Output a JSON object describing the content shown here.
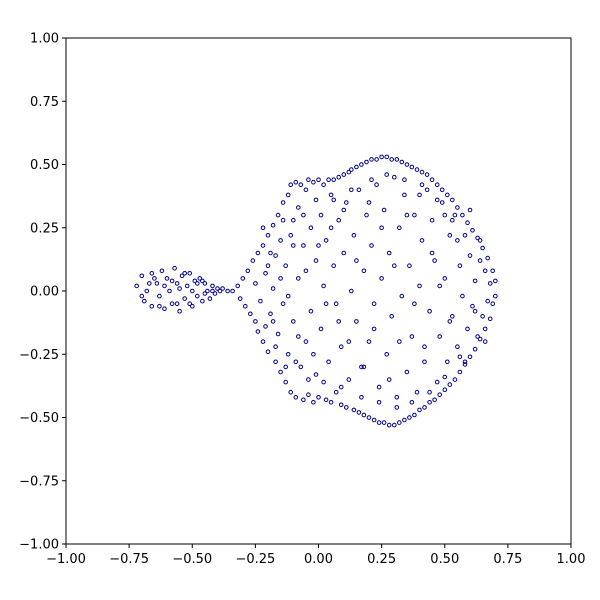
{
  "chart_data": {
    "type": "scatter",
    "title": "",
    "xlabel": "",
    "ylabel": "",
    "xlim": [
      -1.0,
      1.0
    ],
    "ylim": [
      -1.0,
      1.0
    ],
    "grid": false,
    "legend": "none",
    "marker": "open-circle",
    "marker_color": "#00008b",
    "x_ticks": [
      "−1.00",
      "−0.75",
      "−0.50",
      "−0.25",
      "0.00",
      "0.25",
      "0.50",
      "0.75",
      "1.00"
    ],
    "y_ticks": [
      "−1.00",
      "−0.75",
      "−0.50",
      "−0.25",
      "0.00",
      "0.25",
      "0.50",
      "0.75",
      "1.00"
    ],
    "series": [
      {
        "values_desc": "dense cloud of points",
        "points": [
          [
            -0.72,
            0.02
          ],
          [
            -0.7,
            0.06
          ],
          [
            -0.69,
            -0.04
          ],
          [
            -0.68,
            0.0
          ],
          [
            -0.66,
            0.07
          ],
          [
            -0.66,
            -0.06
          ],
          [
            -0.64,
            0.03
          ],
          [
            -0.63,
            -0.02
          ],
          [
            -0.62,
            0.08
          ],
          [
            -0.61,
            -0.07
          ],
          [
            -0.6,
            0.05
          ],
          [
            -0.59,
            0.0
          ],
          [
            -0.58,
            -0.05
          ],
          [
            -0.57,
            0.09
          ],
          [
            -0.56,
            0.03
          ],
          [
            -0.55,
            -0.08
          ],
          [
            -0.54,
            0.06
          ],
          [
            -0.53,
            -0.03
          ],
          [
            -0.52,
            0.02
          ],
          [
            -0.51,
            0.07
          ],
          [
            -0.5,
            -0.06
          ],
          [
            -0.49,
            0.04
          ],
          [
            -0.48,
            -0.02
          ],
          [
            -0.47,
            0.05
          ],
          [
            -0.46,
            -0.04
          ],
          [
            -0.45,
            0.03
          ],
          [
            -0.44,
            0.0
          ],
          [
            -0.43,
            -0.03
          ],
          [
            -0.42,
            0.02
          ],
          [
            -0.41,
            -0.01
          ],
          [
            -0.4,
            0.01
          ],
          [
            -0.38,
            0.01
          ],
          [
            -0.36,
            0.0
          ],
          [
            -0.34,
            0.0
          ],
          [
            -0.32,
            0.02
          ],
          [
            -0.31,
            -0.03
          ],
          [
            -0.3,
            0.05
          ],
          [
            -0.29,
            -0.06
          ],
          [
            -0.28,
            0.08
          ],
          [
            -0.27,
            -0.09
          ],
          [
            -0.26,
            0.12
          ],
          [
            -0.25,
            -0.12
          ],
          [
            -0.25,
            0.03
          ],
          [
            -0.24,
            0.15
          ],
          [
            -0.24,
            -0.16
          ],
          [
            -0.23,
            -0.04
          ],
          [
            -0.22,
            0.18
          ],
          [
            -0.22,
            -0.2
          ],
          [
            -0.21,
            0.07
          ],
          [
            -0.2,
            0.22
          ],
          [
            -0.2,
            -0.24
          ],
          [
            -0.19,
            -0.09
          ],
          [
            -0.18,
            0.26
          ],
          [
            -0.18,
            0.01
          ],
          [
            -0.17,
            -0.28
          ],
          [
            -0.17,
            0.14
          ],
          [
            -0.16,
            0.3
          ],
          [
            -0.16,
            -0.17
          ],
          [
            -0.15,
            -0.32
          ],
          [
            -0.15,
            0.2
          ],
          [
            -0.14,
            0.35
          ],
          [
            -0.14,
            -0.05
          ],
          [
            -0.13,
            -0.36
          ],
          [
            -0.13,
            0.1
          ],
          [
            -0.12,
            0.38
          ],
          [
            -0.12,
            -0.25
          ],
          [
            -0.11,
            0.42
          ],
          [
            -0.11,
            -0.4
          ],
          [
            -0.1,
            0.28
          ],
          [
            -0.1,
            -0.12
          ],
          [
            -0.09,
            0.43
          ],
          [
            -0.09,
            -0.42
          ],
          [
            -0.08,
            0.05
          ],
          [
            -0.08,
            0.33
          ],
          [
            -0.07,
            -0.3
          ],
          [
            -0.07,
            0.42
          ],
          [
            -0.06,
            -0.43
          ],
          [
            -0.06,
            0.18
          ],
          [
            -0.05,
            0.4
          ],
          [
            -0.05,
            -0.2
          ],
          [
            -0.04,
            0.44
          ],
          [
            -0.04,
            -0.41
          ],
          [
            -0.03,
            0.25
          ],
          [
            -0.03,
            -0.08
          ],
          [
            -0.02,
            0.43
          ],
          [
            -0.02,
            -0.44
          ],
          [
            -0.01,
            0.12
          ],
          [
            -0.01,
            -0.33
          ],
          [
            0.0,
            0.44
          ],
          [
            0.0,
            -0.42
          ],
          [
            0.01,
            0.3
          ],
          [
            0.01,
            -0.15
          ],
          [
            0.02,
            0.42
          ],
          [
            0.02,
            0.02
          ],
          [
            0.03,
            -0.43
          ],
          [
            0.03,
            0.2
          ],
          [
            0.04,
            0.44
          ],
          [
            0.04,
            -0.28
          ],
          [
            0.05,
            0.38
          ],
          [
            0.05,
            -0.44
          ],
          [
            0.06,
            0.1
          ],
          [
            0.06,
            0.44
          ],
          [
            0.07,
            -0.4
          ],
          [
            0.07,
            -0.05
          ],
          [
            0.08,
            0.45
          ],
          [
            0.08,
            0.28
          ],
          [
            0.09,
            -0.45
          ],
          [
            0.09,
            -0.22
          ],
          [
            0.1,
            0.46
          ],
          [
            0.1,
            0.15
          ],
          [
            0.11,
            -0.46
          ],
          [
            0.11,
            0.35
          ],
          [
            0.12,
            0.47
          ],
          [
            0.12,
            -0.35
          ],
          [
            0.13,
            0.0
          ],
          [
            0.13,
            0.48
          ],
          [
            0.14,
            -0.47
          ],
          [
            0.14,
            0.22
          ],
          [
            0.15,
            0.49
          ],
          [
            0.15,
            -0.12
          ],
          [
            0.16,
            -0.48
          ],
          [
            0.16,
            0.4
          ],
          [
            0.17,
            0.5
          ],
          [
            0.17,
            -0.3
          ],
          [
            0.18,
            0.08
          ],
          [
            0.18,
            -0.49
          ],
          [
            0.19,
            0.51
          ],
          [
            0.19,
            0.3
          ],
          [
            0.2,
            -0.5
          ],
          [
            0.2,
            -0.2
          ],
          [
            0.21,
            0.52
          ],
          [
            0.21,
            0.18
          ],
          [
            0.22,
            -0.51
          ],
          [
            0.22,
            -0.05
          ],
          [
            0.23,
            0.52
          ],
          [
            0.23,
            0.42
          ],
          [
            0.24,
            -0.52
          ],
          [
            0.24,
            -0.38
          ],
          [
            0.25,
            0.53
          ],
          [
            0.25,
            0.05
          ],
          [
            0.26,
            -0.52
          ],
          [
            0.26,
            0.32
          ],
          [
            0.27,
            0.53
          ],
          [
            0.27,
            -0.25
          ],
          [
            0.28,
            -0.53
          ],
          [
            0.28,
            0.15
          ],
          [
            0.29,
            0.52
          ],
          [
            0.29,
            -0.1
          ],
          [
            0.3,
            -0.53
          ],
          [
            0.3,
            0.45
          ],
          [
            0.31,
            0.52
          ],
          [
            0.31,
            -0.42
          ],
          [
            0.32,
            0.25
          ],
          [
            0.32,
            -0.52
          ],
          [
            0.33,
            0.51
          ],
          [
            0.33,
            -0.02
          ],
          [
            0.34,
            -0.51
          ],
          [
            0.34,
            0.38
          ],
          [
            0.35,
            0.5
          ],
          [
            0.35,
            -0.32
          ],
          [
            0.36,
            0.1
          ],
          [
            0.36,
            -0.5
          ],
          [
            0.37,
            0.49
          ],
          [
            0.37,
            -0.18
          ],
          [
            0.38,
            -0.49
          ],
          [
            0.38,
            0.3
          ],
          [
            0.39,
            0.48
          ],
          [
            0.39,
            -0.4
          ],
          [
            0.4,
            0.02
          ],
          [
            0.4,
            -0.47
          ],
          [
            0.41,
            0.47
          ],
          [
            0.41,
            0.2
          ],
          [
            0.42,
            -0.46
          ],
          [
            0.42,
            -0.28
          ],
          [
            0.43,
            0.46
          ],
          [
            0.43,
            0.4
          ],
          [
            0.44,
            -0.44
          ],
          [
            0.44,
            -0.08
          ],
          [
            0.45,
            0.44
          ],
          [
            0.45,
            0.28
          ],
          [
            0.46,
            -0.43
          ],
          [
            0.46,
            0.12
          ],
          [
            0.47,
            0.42
          ],
          [
            0.47,
            -0.36
          ],
          [
            0.48,
            -0.41
          ],
          [
            0.48,
            -0.18
          ],
          [
            0.49,
            0.4
          ],
          [
            0.49,
            0.35
          ],
          [
            0.5,
            -0.39
          ],
          [
            0.5,
            0.05
          ],
          [
            0.51,
            0.38
          ],
          [
            0.51,
            -0.28
          ],
          [
            0.52,
            -0.37
          ],
          [
            0.52,
            0.22
          ],
          [
            0.53,
            0.36
          ],
          [
            0.53,
            -0.1
          ],
          [
            0.54,
            -0.35
          ],
          [
            0.54,
            0.3
          ],
          [
            0.55,
            0.33
          ],
          [
            0.55,
            -0.22
          ],
          [
            0.56,
            -0.32
          ],
          [
            0.56,
            0.1
          ],
          [
            0.57,
            0.3
          ],
          [
            0.57,
            -0.02
          ],
          [
            0.58,
            -0.29
          ],
          [
            0.58,
            0.22
          ],
          [
            0.59,
            0.27
          ],
          [
            0.59,
            -0.15
          ],
          [
            0.6,
            -0.26
          ],
          [
            0.6,
            0.14
          ],
          [
            0.61,
            0.24
          ],
          [
            0.61,
            -0.06
          ],
          [
            0.62,
            -0.23
          ],
          [
            0.62,
            0.04
          ],
          [
            0.63,
            0.21
          ],
          [
            0.63,
            -0.18
          ],
          [
            0.64,
            -0.19
          ],
          [
            0.64,
            0.12
          ],
          [
            0.65,
            0.17
          ],
          [
            0.65,
            -0.1
          ],
          [
            0.66,
            -0.15
          ],
          [
            0.66,
            0.08
          ],
          [
            0.67,
            0.13
          ],
          [
            0.67,
            -0.04
          ],
          [
            0.68,
            -0.11
          ],
          [
            0.68,
            0.03
          ],
          [
            0.69,
            0.08
          ],
          [
            0.69,
            -0.05
          ],
          [
            0.7,
            0.04
          ],
          [
            0.7,
            -0.02
          ],
          [
            -0.2,
            0.1
          ],
          [
            -0.18,
            -0.12
          ],
          [
            -0.15,
            0.05
          ],
          [
            -0.12,
            -0.02
          ],
          [
            -0.1,
            0.18
          ],
          [
            -0.08,
            -0.18
          ],
          [
            -0.05,
            0.08
          ],
          [
            -0.02,
            -0.25
          ],
          [
            0.0,
            0.18
          ],
          [
            0.03,
            -0.05
          ],
          [
            0.05,
            0.25
          ],
          [
            0.08,
            -0.12
          ],
          [
            0.1,
            0.32
          ],
          [
            0.12,
            -0.2
          ],
          [
            0.15,
            0.12
          ],
          [
            0.18,
            -0.3
          ],
          [
            0.2,
            0.35
          ],
          [
            0.22,
            -0.15
          ],
          [
            0.25,
            0.25
          ],
          [
            0.28,
            -0.35
          ],
          [
            0.3,
            0.1
          ],
          [
            0.32,
            -0.2
          ],
          [
            0.35,
            0.3
          ],
          [
            0.38,
            -0.05
          ],
          [
            0.4,
            0.38
          ],
          [
            0.42,
            -0.22
          ],
          [
            0.45,
            0.15
          ],
          [
            0.48,
            0.02
          ],
          [
            0.5,
            0.3
          ],
          [
            0.52,
            -0.12
          ],
          [
            0.55,
            0.2
          ],
          [
            0.58,
            -0.28
          ],
          [
            0.6,
            0.32
          ],
          [
            0.62,
            -0.08
          ],
          [
            0.64,
            0.2
          ],
          [
            0.66,
            -0.2
          ],
          [
            -0.22,
            0.25
          ],
          [
            -0.21,
            -0.14
          ],
          [
            -0.19,
            0.15
          ],
          [
            -0.17,
            -0.22
          ],
          [
            -0.14,
            0.28
          ],
          [
            -0.13,
            -0.3
          ],
          [
            -0.11,
            0.22
          ],
          [
            -0.09,
            -0.28
          ],
          [
            -0.06,
            0.3
          ],
          [
            -0.04,
            -0.35
          ],
          [
            -0.01,
            0.36
          ],
          [
            0.02,
            -0.36
          ],
          [
            0.06,
            0.36
          ],
          [
            0.09,
            -0.38
          ],
          [
            0.13,
            0.4
          ],
          [
            0.17,
            -0.42
          ],
          [
            0.21,
            0.44
          ],
          [
            0.24,
            -0.44
          ],
          [
            0.27,
            0.46
          ],
          [
            0.31,
            -0.46
          ],
          [
            0.34,
            0.44
          ],
          [
            0.37,
            -0.44
          ],
          [
            0.41,
            0.42
          ],
          [
            0.44,
            -0.4
          ],
          [
            0.47,
            0.36
          ],
          [
            0.5,
            -0.34
          ],
          [
            0.53,
            0.28
          ],
          [
            0.56,
            -0.26
          ],
          [
            -0.65,
            0.05
          ],
          [
            -0.63,
            -0.06
          ],
          [
            -0.58,
            0.04
          ],
          [
            -0.56,
            -0.05
          ],
          [
            -0.53,
            0.07
          ],
          [
            -0.51,
            -0.05
          ],
          [
            -0.48,
            0.03
          ],
          [
            -0.46,
            0.04
          ],
          [
            -0.7,
            -0.02
          ],
          [
            -0.67,
            0.03
          ],
          [
            -0.61,
            0.02
          ],
          [
            -0.55,
            0.01
          ],
          [
            -0.5,
            0.0
          ],
          [
            -0.45,
            -0.01
          ],
          [
            -0.42,
            0.0
          ],
          [
            -0.39,
            0.0
          ]
        ]
      }
    ]
  }
}
